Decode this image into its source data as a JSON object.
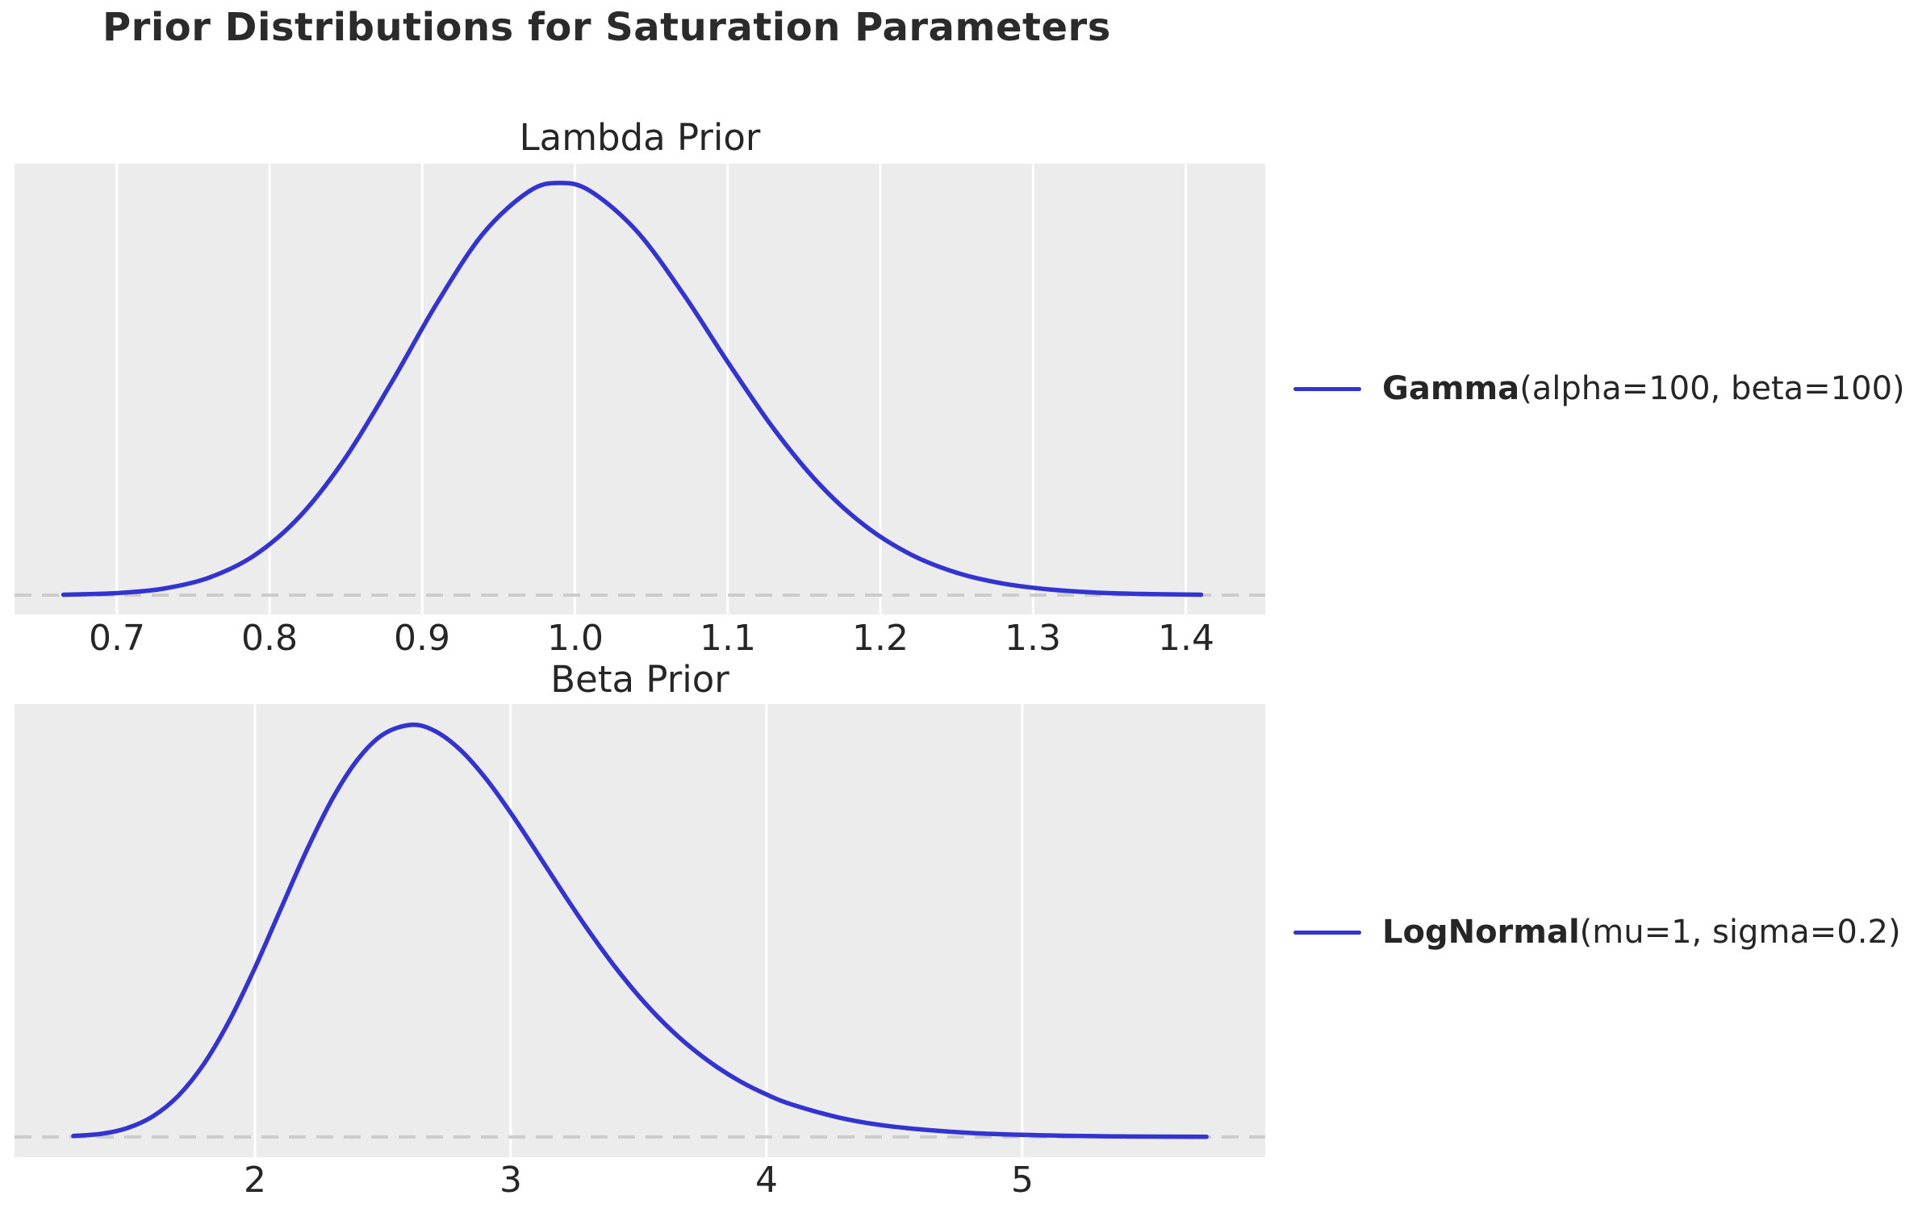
{
  "title": "Prior Distributions for Saturation Parameters",
  "colors": {
    "curve": "#3333d1",
    "plot_background": "#ececec",
    "gridline": "#ffffff",
    "zero_line": "#cccccc",
    "text": "#262626"
  },
  "chart_data": [
    {
      "type": "line",
      "title": "Lambda Prior",
      "legend": {
        "name": "Gamma",
        "params": "(alpha=100, beta=100)"
      },
      "xlabel": "",
      "ylabel": "",
      "legend_position": "right-of-plot",
      "grid": "vertical-only",
      "xlim": [
        0.633,
        1.452
      ],
      "ylim": [
        -0.188,
        4.193
      ],
      "zero_line": 0,
      "xtick_values": [
        0.7,
        0.8,
        0.9,
        1.0,
        1.1,
        1.2,
        1.3,
        1.4
      ],
      "xtick_labels": [
        "0.7",
        "0.8",
        "0.9",
        "1.0",
        "1.1",
        "1.2",
        "1.3",
        "1.4"
      ],
      "x": [
        0.665,
        0.7,
        0.73,
        0.76,
        0.79,
        0.82,
        0.85,
        0.88,
        0.91,
        0.94,
        0.97,
        0.99,
        1.01,
        1.04,
        1.07,
        1.1,
        1.13,
        1.16,
        1.19,
        1.22,
        1.25,
        1.28,
        1.31,
        1.34,
        1.37,
        1.41
      ],
      "y": [
        0.004,
        0.02,
        0.062,
        0.168,
        0.385,
        0.768,
        1.341,
        2.07,
        2.846,
        3.516,
        3.925,
        4.006,
        3.927,
        3.545,
        2.948,
        2.267,
        1.62,
        1.079,
        0.673,
        0.394,
        0.217,
        0.113,
        0.056,
        0.026,
        0.012,
        0.004
      ]
    },
    {
      "type": "line",
      "title": "Beta Prior",
      "legend": {
        "name": "LogNormal",
        "params": "(mu=1, sigma=0.2)"
      },
      "xlabel": "",
      "ylabel": "",
      "legend_position": "right-of-plot",
      "grid": "vertical-only",
      "xlim": [
        1.06,
        5.95
      ],
      "ylim": [
        -0.0367,
        0.7866
      ],
      "zero_line": 0,
      "xtick_values": [
        2,
        3,
        4,
        5
      ],
      "xtick_labels": [
        "2",
        "3",
        "4",
        "5"
      ],
      "x": [
        1.29,
        1.4,
        1.5,
        1.6,
        1.7,
        1.8,
        1.9,
        2.0,
        2.1,
        2.2,
        2.3,
        2.4,
        2.5,
        2.61,
        2.7,
        2.8,
        2.9,
        3.0,
        3.1,
        3.2,
        3.3,
        3.4,
        3.5,
        3.6,
        3.7,
        3.8,
        3.9,
        4.0,
        4.1,
        4.3,
        4.5,
        4.8,
        5.1,
        5.4,
        5.72
      ],
      "y": [
        0.0017,
        0.0058,
        0.016,
        0.0372,
        0.0747,
        0.1325,
        0.2113,
        0.3074,
        0.4132,
        0.5182,
        0.6118,
        0.6847,
        0.731,
        0.7486,
        0.7384,
        0.7046,
        0.6528,
        0.5888,
        0.5185,
        0.4469,
        0.3777,
        0.3137,
        0.2564,
        0.2066,
        0.1643,
        0.1291,
        0.1003,
        0.0772,
        0.0589,
        0.0335,
        0.0185,
        0.0073,
        0.0028,
        0.001,
        0.0003
      ]
    }
  ]
}
